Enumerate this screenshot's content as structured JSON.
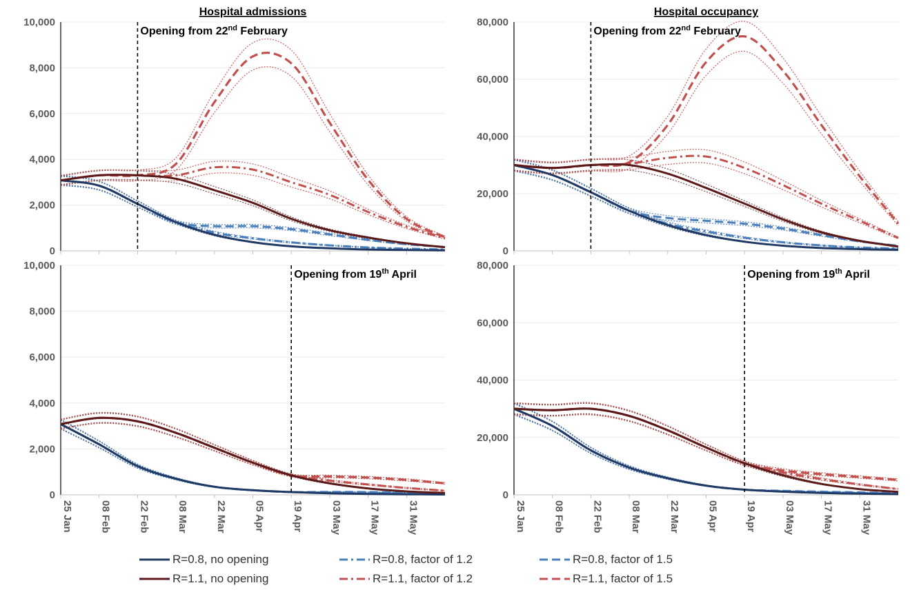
{
  "chart_data": [
    {
      "type": "line",
      "title": "Hospital admissions",
      "annotation": "Opening from 22nd February",
      "annotation_base": "Opening from 22",
      "annotation_sup": "nd",
      "annotation_tail": " February",
      "opening_date": "22 Feb",
      "x_ticks": [
        "25 Jan",
        "08 Feb",
        "22 Feb",
        "08 Mar",
        "22 Mar",
        "05 Apr",
        "19 Apr",
        "03 May",
        "17 May",
        "31 May"
      ],
      "x_range": [
        "25 Jan",
        "14 Jun"
      ],
      "ylim": [
        0,
        10000
      ],
      "y_ticks": [
        "0",
        "2,000",
        "4,000",
        "6,000",
        "8,000",
        "10,000"
      ],
      "show_x_labels": false,
      "series": [
        {
          "name": "R=0.8, no opening",
          "values": [
            3080,
            2850,
            2050,
            1250,
            700,
            380,
            200,
            110,
            60,
            35,
            20
          ]
        },
        {
          "name": "R=0.8, factor of 1.2",
          "values": [
            3080,
            2850,
            2050,
            1250,
            800,
            550,
            370,
            240,
            150,
            95,
            60
          ]
        },
        {
          "name": "R=0.8, factor of 1.5",
          "values": [
            3080,
            2850,
            2050,
            1250,
            1080,
            1080,
            950,
            720,
            480,
            290,
            170
          ]
        },
        {
          "name": "R=1.1, no opening",
          "values": [
            3080,
            3300,
            3300,
            3150,
            2650,
            2100,
            1400,
            900,
            580,
            330,
            160
          ]
        },
        {
          "name": "R=1.1, factor of 1.2",
          "values": [
            3080,
            3300,
            3300,
            3300,
            3650,
            3550,
            3000,
            2450,
            1700,
            1050,
            550
          ]
        },
        {
          "name": "R=1.1, factor of 1.5",
          "values": [
            3080,
            3300,
            3300,
            3800,
            6500,
            8500,
            8200,
            5600,
            3100,
            1400,
            600
          ]
        }
      ]
    },
    {
      "type": "line",
      "title": "Hospital occupancy",
      "annotation": "Opening from 22nd February",
      "annotation_base": "Opening from 22",
      "annotation_sup": "nd",
      "annotation_tail": " February",
      "opening_date": "22 Feb",
      "x_ticks": [
        "25 Jan",
        "08 Feb",
        "22 Feb",
        "08 Mar",
        "22 Mar",
        "05 Apr",
        "19 Apr",
        "03 May",
        "17 May",
        "31 May"
      ],
      "x_range": [
        "25 Jan",
        "14 Jun"
      ],
      "ylim": [
        0,
        80000
      ],
      "y_ticks": [
        "0",
        "20,000",
        "40,000",
        "60,000",
        "80,000"
      ],
      "show_x_labels": false,
      "series": [
        {
          "name": "R=0.8, no opening",
          "values": [
            30000,
            26500,
            20500,
            14000,
            9000,
            5500,
            3200,
            1800,
            1000,
            600,
            350
          ]
        },
        {
          "name": "R=0.8, factor of 1.2",
          "values": [
            30000,
            26500,
            20500,
            14000,
            9500,
            6800,
            4600,
            3000,
            1900,
            1200,
            800
          ]
        },
        {
          "name": "R=0.8, factor of 1.5",
          "values": [
            30000,
            26500,
            20500,
            14000,
            11500,
            10500,
            9500,
            7800,
            5500,
            3300,
            1800
          ]
        },
        {
          "name": "R=1.1, no opening",
          "values": [
            30000,
            29000,
            30000,
            30000,
            27000,
            22000,
            16500,
            11000,
            6500,
            3500,
            1500
          ]
        },
        {
          "name": "R=1.1, factor of 1.2",
          "values": [
            30000,
            29000,
            30000,
            30500,
            32500,
            33000,
            29000,
            23000,
            16500,
            10500,
            4500
          ]
        },
        {
          "name": "R=1.1, factor of 1.5",
          "values": [
            30000,
            29000,
            30000,
            31000,
            44000,
            66000,
            75000,
            63000,
            44000,
            26000,
            9500
          ]
        }
      ]
    },
    {
      "type": "line",
      "title": "",
      "annotation": "Opening from 19th April",
      "annotation_base": "Opening from 19",
      "annotation_sup": "th",
      "annotation_tail": " April",
      "opening_date": "19 Apr",
      "x_ticks": [
        "25 Jan",
        "08 Feb",
        "22 Feb",
        "08 Mar",
        "22 Mar",
        "05 Apr",
        "19 Apr",
        "03 May",
        "17 May",
        "31 May"
      ],
      "x_range": [
        "25 Jan",
        "14 Jun"
      ],
      "ylim": [
        0,
        10000
      ],
      "y_ticks": [
        "0",
        "2,000",
        "4,000",
        "6,000",
        "8,000",
        "10,000"
      ],
      "show_x_labels": true,
      "series": [
        {
          "name": "R=0.8, no opening",
          "values": [
            3080,
            2200,
            1250,
            700,
            350,
            200,
            120,
            70,
            40,
            25,
            15
          ]
        },
        {
          "name": "R=0.8, factor of 1.2",
          "values": [
            3080,
            2200,
            1250,
            700,
            350,
            200,
            120,
            100,
            80,
            60,
            40
          ]
        },
        {
          "name": "R=0.8, factor of 1.5",
          "values": [
            3080,
            2200,
            1250,
            700,
            350,
            200,
            120,
            130,
            120,
            100,
            70
          ]
        },
        {
          "name": "R=1.1, no opening",
          "values": [
            3080,
            3350,
            3200,
            2700,
            2050,
            1400,
            850,
            500,
            280,
            150,
            80
          ]
        },
        {
          "name": "R=1.1, factor of 1.2",
          "values": [
            3080,
            3350,
            3200,
            2700,
            2050,
            1400,
            850,
            620,
            450,
            300,
            180
          ]
        },
        {
          "name": "R=1.1, factor of 1.5",
          "values": [
            3080,
            3350,
            3200,
            2700,
            2050,
            1400,
            850,
            800,
            750,
            650,
            500
          ]
        }
      ]
    },
    {
      "type": "line",
      "title": "",
      "annotation": "Opening from 19th April",
      "annotation_base": "Opening from 19",
      "annotation_sup": "th",
      "annotation_tail": " April",
      "opening_date": "19 Apr",
      "x_ticks": [
        "25 Jan",
        "08 Feb",
        "22 Feb",
        "08 Mar",
        "22 Mar",
        "05 Apr",
        "19 Apr",
        "03 May",
        "17 May",
        "31 May"
      ],
      "x_range": [
        "25 Jan",
        "14 Jun"
      ],
      "ylim": [
        0,
        80000
      ],
      "y_ticks": [
        "0",
        "20,000",
        "40,000",
        "60,000",
        "80,000"
      ],
      "show_x_labels": true,
      "series": [
        {
          "name": "R=0.8, no opening",
          "values": [
            30000,
            24000,
            15500,
            9500,
            5800,
            3200,
            1800,
            1100,
            650,
            400,
            250
          ]
        },
        {
          "name": "R=0.8, factor of 1.2",
          "values": [
            30000,
            24000,
            15500,
            9500,
            5800,
            3200,
            1800,
            1200,
            850,
            600,
            400
          ]
        },
        {
          "name": "R=0.8, factor of 1.5",
          "values": [
            30000,
            24000,
            15500,
            9500,
            5800,
            3200,
            1800,
            1400,
            1100,
            850,
            600
          ]
        },
        {
          "name": "R=1.1, no opening",
          "values": [
            30000,
            29500,
            30000,
            27500,
            22500,
            16500,
            11000,
            6800,
            3800,
            2000,
            1000
          ]
        },
        {
          "name": "R=1.1, factor of 1.2",
          "values": [
            30000,
            29500,
            30000,
            27500,
            22500,
            16500,
            11000,
            7800,
            5500,
            3600,
            2000
          ]
        },
        {
          "name": "R=1.1, factor of 1.5",
          "values": [
            30000,
            29500,
            30000,
            27500,
            22500,
            16500,
            11000,
            8500,
            7200,
            6200,
            5200
          ]
        }
      ]
    }
  ],
  "legend": [
    {
      "label": "R=0.8, no opening",
      "color": "#1f3864",
      "dash": "solid"
    },
    {
      "label": "R=0.8, factor of 1.2",
      "color": "#4a7ebb",
      "dash": "dashdot"
    },
    {
      "label": "R=0.8, factor of 1.5",
      "color": "#4a7ebb",
      "dash": "dash"
    },
    {
      "label": "R=1.1, no opening",
      "color": "#5b1a1a",
      "dash": "solid"
    },
    {
      "label": "R=1.1, factor of 1.2",
      "color": "#c0504d",
      "dash": "dashdot"
    },
    {
      "label": "R=1.1, factor of 1.5",
      "color": "#c0504d",
      "dash": "dash"
    }
  ],
  "colors": {
    "r08_dark": "#1f3864",
    "r08_light": "#4a7ebb",
    "r11_dark": "#5b1a1a",
    "r11_light": "#c0504d",
    "axis_text": "#595959",
    "grid": "#ececec"
  }
}
